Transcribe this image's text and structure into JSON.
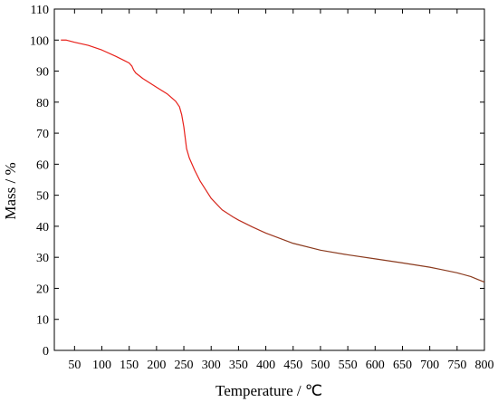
{
  "chart_data": {
    "type": "line",
    "xlabel": "Temperature / ℃",
    "ylabel": "Mass / %",
    "xlim": [
      13,
      800
    ],
    "ylim": [
      0,
      110
    ],
    "xticks": [
      50,
      100,
      150,
      200,
      250,
      300,
      350,
      400,
      450,
      500,
      550,
      600,
      650,
      700,
      750,
      800
    ],
    "yticks": [
      0,
      10,
      20,
      30,
      40,
      50,
      60,
      70,
      80,
      90,
      100,
      110
    ],
    "grid": false,
    "series": [
      {
        "color": "#e8201a",
        "end_color": "#8a3a1e",
        "x": [
          25,
          35,
          50,
          75,
          100,
          125,
          140,
          150,
          155,
          158,
          162,
          175,
          200,
          220,
          235,
          242,
          246,
          250,
          255,
          260,
          270,
          280,
          300,
          320,
          340,
          350,
          375,
          400,
          450,
          500,
          550,
          600,
          650,
          700,
          720,
          750,
          775,
          790,
          800
        ],
        "y": [
          100,
          100,
          99.3,
          98.3,
          96.8,
          94.8,
          93.5,
          92.6,
          91.6,
          90.4,
          89.4,
          87.6,
          84.8,
          82.6,
          80.3,
          78.5,
          76.0,
          72.0,
          65.0,
          62.0,
          58.0,
          54.5,
          49.0,
          45.3,
          43.0,
          42.0,
          39.8,
          37.8,
          34.5,
          32.3,
          30.8,
          29.5,
          28.2,
          26.8,
          26.1,
          25.0,
          23.8,
          22.7,
          22.0
        ]
      }
    ]
  }
}
